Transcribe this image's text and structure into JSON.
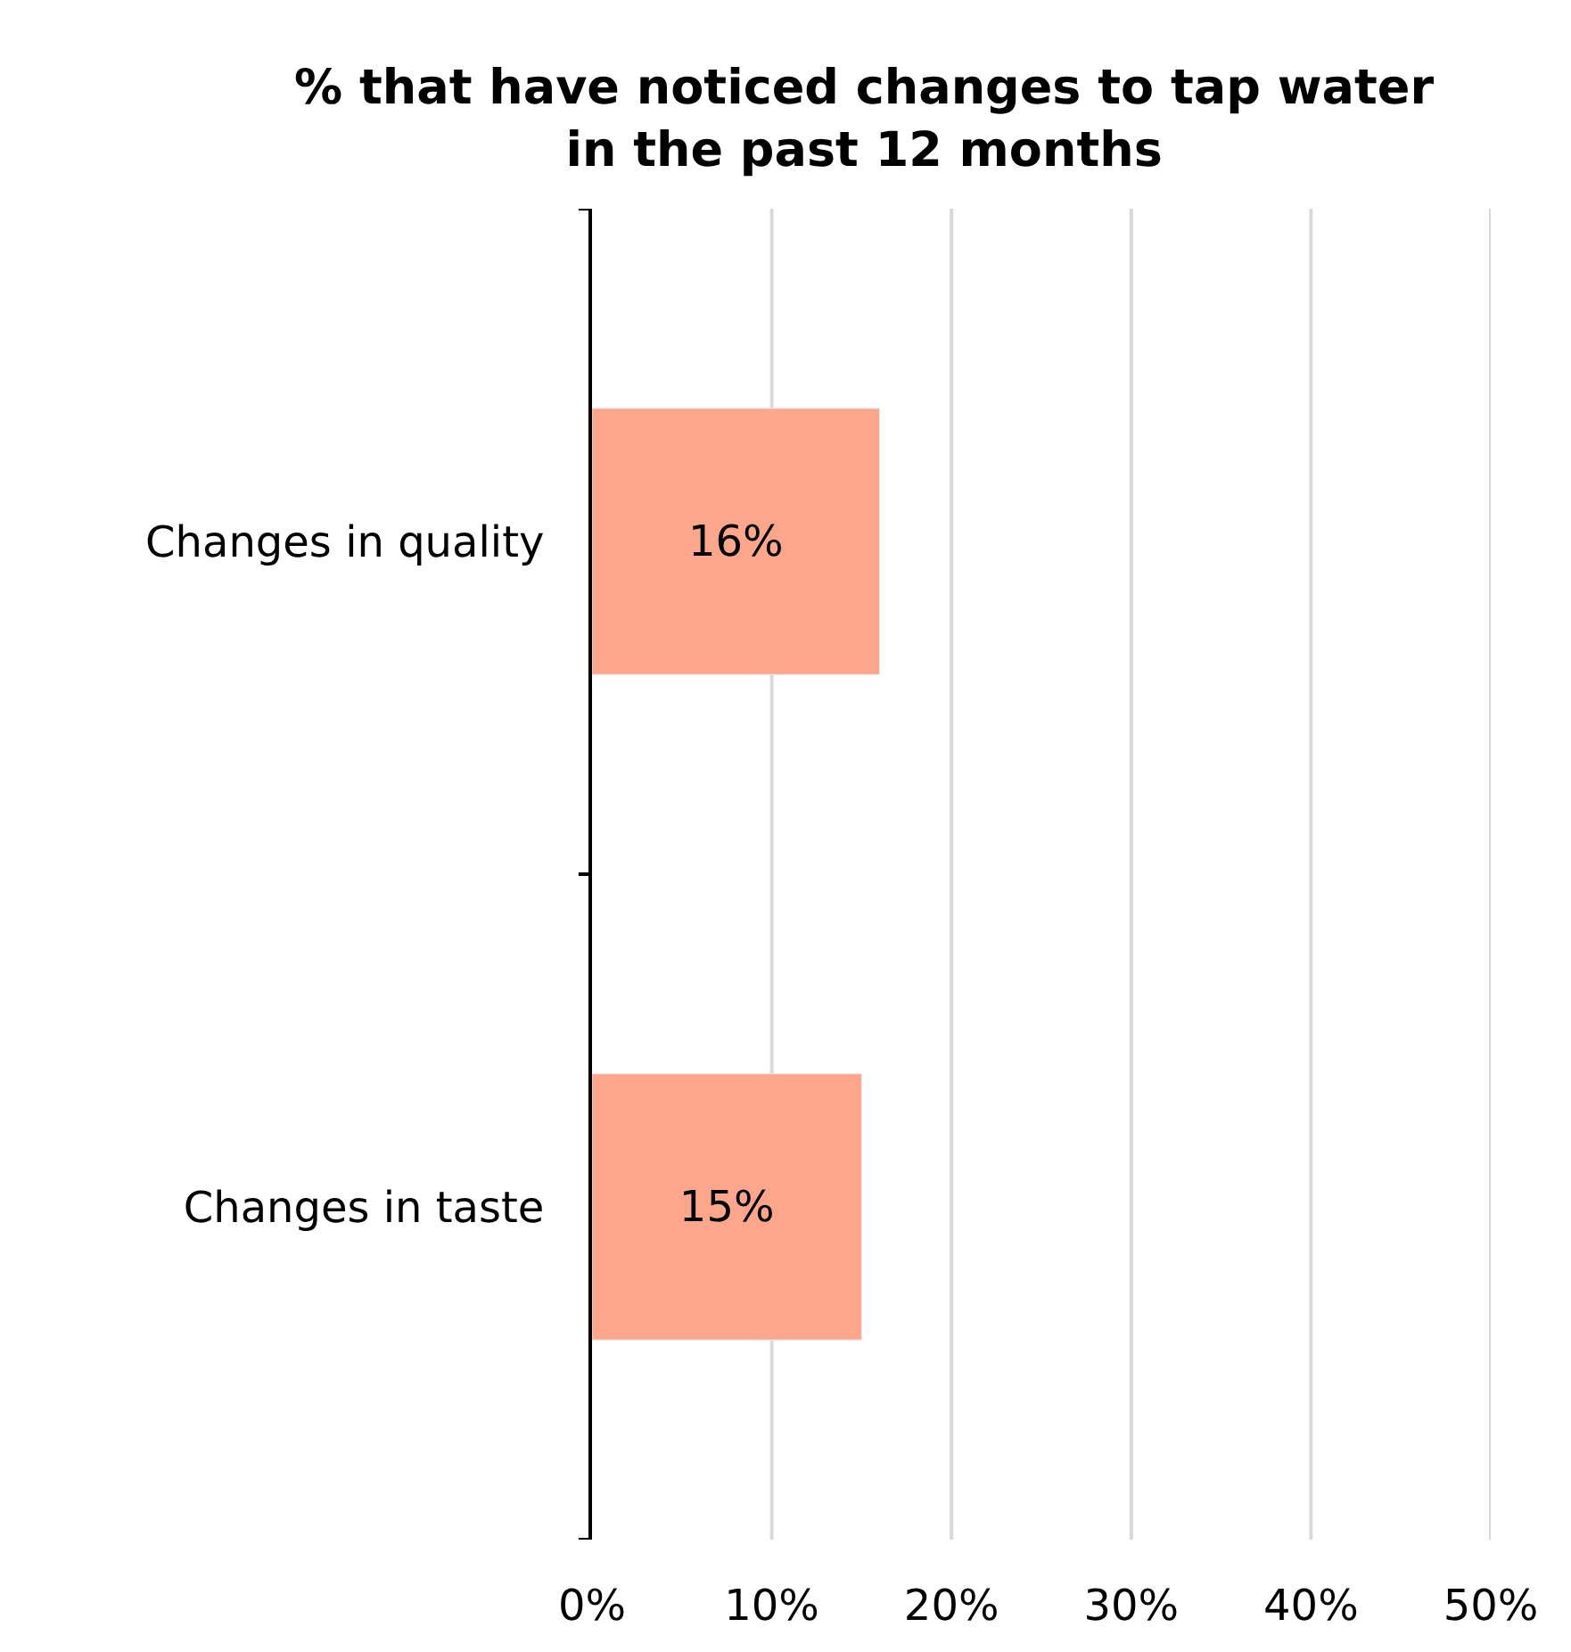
{
  "chart_data": {
    "type": "bar",
    "orientation": "horizontal",
    "title": "% that have noticed changes to tap water\nin the past 12 months",
    "categories": [
      "Changes in quality",
      "Changes in taste"
    ],
    "values": [
      16,
      15
    ],
    "value_labels": [
      "16%",
      "15%"
    ],
    "color": "#fca68c",
    "xlim": [
      0,
      50
    ],
    "xticks": [
      {
        "value": 0,
        "label": "0%"
      },
      {
        "value": 10,
        "label": "10%"
      },
      {
        "value": 20,
        "label": "20%"
      },
      {
        "value": 30,
        "label": "30%"
      },
      {
        "value": 40,
        "label": "40%"
      },
      {
        "value": 50,
        "label": "50%"
      }
    ],
    "grid": "x",
    "legend": false
  }
}
